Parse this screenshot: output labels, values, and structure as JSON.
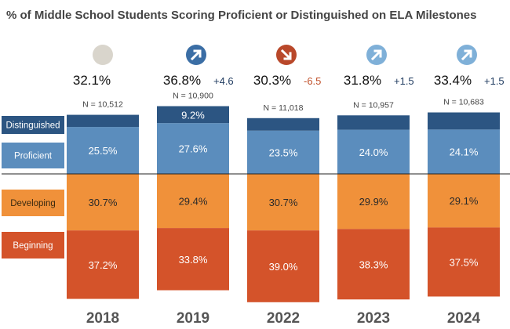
{
  "chart_data": {
    "type": "bar",
    "subtype": "stacked-diverging",
    "title": "% of Middle School Students Scoring Proficient or Distinguished on ELA Milestones",
    "categories": [
      "2018",
      "2019",
      "2022",
      "2023",
      "2024"
    ],
    "series": [
      {
        "name": "Distinguished",
        "color": "#2c5582",
        "values": [
          6.6,
          9.2,
          6.8,
          7.8,
          9.3
        ]
      },
      {
        "name": "Proficient",
        "color": "#5b8dbd",
        "values": [
          25.5,
          27.6,
          23.5,
          24.0,
          24.1
        ]
      },
      {
        "name": "Developing",
        "color": "#f0913a",
        "values": [
          30.7,
          29.4,
          30.7,
          29.9,
          29.1
        ]
      },
      {
        "name": "Beginning",
        "color": "#d4532a",
        "values": [
          37.2,
          33.8,
          39.0,
          38.3,
          37.5
        ]
      }
    ],
    "value_labels": [
      {
        "Distinguished": "",
        "Proficient": "25.5%",
        "Developing": "30.7%",
        "Beginning": "37.2%"
      },
      {
        "Distinguished": "9.2%",
        "Proficient": "27.6%",
        "Developing": "29.4%",
        "Beginning": "33.8%"
      },
      {
        "Distinguished": "",
        "Proficient": "23.5%",
        "Developing": "30.7%",
        "Beginning": "39.0%"
      },
      {
        "Distinguished": "",
        "Proficient": "24.0%",
        "Developing": "29.9%",
        "Beginning": "38.3%"
      },
      {
        "Distinguished": "",
        "Proficient": "24.1%",
        "Developing": "29.1%",
        "Beginning": "37.5%"
      }
    ],
    "totals": [
      "32.1%",
      "36.8%",
      "30.3%",
      "31.8%",
      "33.4%"
    ],
    "changes": [
      {
        "text": "",
        "direction": "none",
        "color": "#1e3a5f"
      },
      {
        "text": "+4.6",
        "direction": "up",
        "color": "#1e3a5f"
      },
      {
        "text": "-6.5",
        "direction": "down",
        "color": "#c0502a"
      },
      {
        "text": "+1.5",
        "direction": "up",
        "color": "#1e3a5f"
      },
      {
        "text": "+1.5",
        "direction": "up",
        "color": "#1e3a5f"
      }
    ],
    "n_labels": [
      "N = 10,512",
      "N = 10,900",
      "N = 11,018",
      "N = 10,957",
      "N = 10,683"
    ],
    "trend_icons": [
      {
        "name": "neutral-circle-icon",
        "color": "#d9d5cc"
      },
      {
        "name": "arrow-up-right-icon",
        "color": "#3b6ea5"
      },
      {
        "name": "arrow-down-right-icon",
        "color": "#b9482a"
      },
      {
        "name": "arrow-up-right-icon",
        "color": "#7fb0d8"
      },
      {
        "name": "arrow-up-right-icon",
        "color": "#7fb0d8"
      }
    ],
    "legend_labels": [
      {
        "text": "Distinguished",
        "color": "#2c5582",
        "text_color": "#ffffff"
      },
      {
        "text": "Proficient",
        "color": "#5b8dbd",
        "text_color": "#ffffff"
      },
      {
        "text": "Developing",
        "color": "#f0913a",
        "text_color": "#3a2a10"
      },
      {
        "text": "Beginning",
        "color": "#d4532a",
        "text_color": "#ffffff"
      }
    ],
    "ylim": [
      -70,
      40
    ]
  }
}
